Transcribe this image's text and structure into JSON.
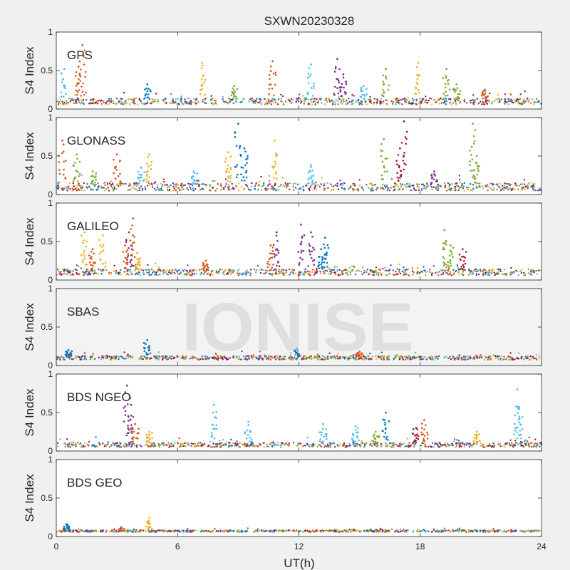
{
  "figure": {
    "title": "SXWN20230328",
    "watermark": "IONISE",
    "xlabel": "UT(h)",
    "ylabel": "S4 Index",
    "x_ticks": [
      "0",
      "6",
      "12",
      "18",
      "24"
    ],
    "y_ticks": [
      "0",
      "0.5",
      "1"
    ]
  },
  "colors": {
    "blue": "#0072bd",
    "orange": "#d95319",
    "yellow": "#edb120",
    "purple": "#7e2f8e",
    "green": "#77ac30",
    "cyan": "#4dbeee",
    "red": "#a2142f"
  },
  "chart_data": [
    {
      "type": "scatter",
      "label": "GPS",
      "xlim": [
        0,
        24
      ],
      "ylim": [
        0,
        1
      ],
      "baseline": 0.1,
      "noise": 0.04,
      "grey_band": false,
      "spikes": [
        {
          "x": 0.4,
          "y": 0.52,
          "c": "cyan"
        },
        {
          "x": 1.3,
          "y": 0.83,
          "c": "orange"
        },
        {
          "x": 1.1,
          "y": 0.55,
          "c": "orange"
        },
        {
          "x": 4.5,
          "y": 0.32,
          "c": "blue"
        },
        {
          "x": 7.2,
          "y": 0.6,
          "c": "yellow"
        },
        {
          "x": 8.8,
          "y": 0.3,
          "c": "green"
        },
        {
          "x": 10.7,
          "y": 0.62,
          "c": "orange"
        },
        {
          "x": 12.6,
          "y": 0.58,
          "c": "cyan"
        },
        {
          "x": 13.9,
          "y": 0.65,
          "c": "purple"
        },
        {
          "x": 14.2,
          "y": 0.45,
          "c": "purple"
        },
        {
          "x": 15.2,
          "y": 0.3,
          "c": "cyan"
        },
        {
          "x": 16.3,
          "y": 0.52,
          "c": "green"
        },
        {
          "x": 17.9,
          "y": 0.6,
          "c": "yellow"
        },
        {
          "x": 19.3,
          "y": 0.52,
          "c": "green"
        },
        {
          "x": 19.8,
          "y": 0.32,
          "c": "green"
        },
        {
          "x": 21.2,
          "y": 0.25,
          "c": "orange"
        }
      ]
    },
    {
      "type": "scatter",
      "label": "GLONASS",
      "xlim": [
        0,
        24
      ],
      "ylim": [
        0,
        1
      ],
      "baseline": 0.1,
      "noise": 0.05,
      "grey_band": false,
      "spikes": [
        {
          "x": 0.3,
          "y": 0.7,
          "c": "orange"
        },
        {
          "x": 1.0,
          "y": 0.52,
          "c": "green"
        },
        {
          "x": 1.8,
          "y": 0.3,
          "c": "green"
        },
        {
          "x": 3.0,
          "y": 0.52,
          "c": "orange"
        },
        {
          "x": 4.6,
          "y": 0.52,
          "c": "yellow"
        },
        {
          "x": 4.2,
          "y": 0.35,
          "c": "cyan"
        },
        {
          "x": 6.8,
          "y": 0.3,
          "c": "cyan"
        },
        {
          "x": 9.0,
          "y": 0.92,
          "c": "blue"
        },
        {
          "x": 9.3,
          "y": 0.6,
          "c": "blue"
        },
        {
          "x": 8.5,
          "y": 0.55,
          "c": "yellow"
        },
        {
          "x": 10.8,
          "y": 0.7,
          "c": "yellow"
        },
        {
          "x": 12.6,
          "y": 0.38,
          "c": "cyan"
        },
        {
          "x": 16.2,
          "y": 0.72,
          "c": "green"
        },
        {
          "x": 17.2,
          "y": 0.95,
          "c": "red"
        },
        {
          "x": 17.0,
          "y": 0.6,
          "c": "red"
        },
        {
          "x": 18.7,
          "y": 0.3,
          "c": "purple"
        },
        {
          "x": 20.6,
          "y": 0.92,
          "c": "green"
        },
        {
          "x": 20.8,
          "y": 0.5,
          "c": "green"
        }
      ]
    },
    {
      "type": "scatter",
      "label": "GALILEO",
      "xlim": [
        0,
        24
      ],
      "ylim": [
        0,
        1
      ],
      "baseline": 0.1,
      "noise": 0.04,
      "grey_band": false,
      "spikes": [
        {
          "x": 1.4,
          "y": 0.62,
          "c": "yellow"
        },
        {
          "x": 1.8,
          "y": 0.4,
          "c": "orange"
        },
        {
          "x": 2.3,
          "y": 0.58,
          "c": "yellow"
        },
        {
          "x": 3.6,
          "y": 0.62,
          "c": "purple"
        },
        {
          "x": 3.8,
          "y": 0.8,
          "c": "orange"
        },
        {
          "x": 3.4,
          "y": 0.45,
          "c": "orange"
        },
        {
          "x": 4.0,
          "y": 0.35,
          "c": "yellow"
        },
        {
          "x": 7.4,
          "y": 0.25,
          "c": "orange"
        },
        {
          "x": 10.6,
          "y": 0.45,
          "c": "orange"
        },
        {
          "x": 10.9,
          "y": 0.62,
          "c": "purple"
        },
        {
          "x": 12.1,
          "y": 0.72,
          "c": "purple"
        },
        {
          "x": 12.6,
          "y": 0.62,
          "c": "purple"
        },
        {
          "x": 13.3,
          "y": 0.55,
          "c": "blue"
        },
        {
          "x": 13.1,
          "y": 0.4,
          "c": "blue"
        },
        {
          "x": 19.2,
          "y": 0.65,
          "c": "green"
        },
        {
          "x": 19.5,
          "y": 0.45,
          "c": "green"
        },
        {
          "x": 20.1,
          "y": 0.4,
          "c": "red"
        }
      ]
    },
    {
      "type": "scatter",
      "label": "SBAS",
      "xlim": [
        0,
        24
      ],
      "ylim": [
        0,
        1
      ],
      "baseline": 0.1,
      "noise": 0.025,
      "grey_band": true,
      "spikes": [
        {
          "x": 4.5,
          "y": 0.33,
          "c": "blue"
        },
        {
          "x": 0.6,
          "y": 0.2,
          "c": "blue"
        },
        {
          "x": 11.9,
          "y": 0.22,
          "c": "blue"
        },
        {
          "x": 15.0,
          "y": 0.18,
          "c": "orange"
        }
      ]
    },
    {
      "type": "scatter",
      "label": "BDS NGEO",
      "xlim": [
        0,
        24
      ],
      "ylim": [
        0,
        1
      ],
      "baseline": 0.08,
      "noise": 0.03,
      "grey_band": false,
      "spikes": [
        {
          "x": 3.5,
          "y": 0.85,
          "c": "purple"
        },
        {
          "x": 3.7,
          "y": 0.6,
          "c": "purple"
        },
        {
          "x": 3.9,
          "y": 0.35,
          "c": "orange"
        },
        {
          "x": 4.6,
          "y": 0.25,
          "c": "yellow"
        },
        {
          "x": 7.8,
          "y": 0.6,
          "c": "cyan"
        },
        {
          "x": 9.5,
          "y": 0.38,
          "c": "cyan"
        },
        {
          "x": 13.2,
          "y": 0.35,
          "c": "cyan"
        },
        {
          "x": 14.8,
          "y": 0.32,
          "c": "cyan"
        },
        {
          "x": 15.8,
          "y": 0.25,
          "c": "green"
        },
        {
          "x": 16.3,
          "y": 0.5,
          "c": "blue"
        },
        {
          "x": 18.2,
          "y": 0.4,
          "c": "orange"
        },
        {
          "x": 17.8,
          "y": 0.3,
          "c": "red"
        },
        {
          "x": 20.8,
          "y": 0.25,
          "c": "yellow"
        },
        {
          "x": 22.8,
          "y": 0.8,
          "c": "cyan"
        },
        {
          "x": 22.9,
          "y": 0.55,
          "c": "cyan"
        }
      ]
    },
    {
      "type": "scatter",
      "label": "BDS GEO",
      "xlim": [
        0,
        24
      ],
      "ylim": [
        0,
        1
      ],
      "baseline": 0.07,
      "noise": 0.012,
      "grey_band": false,
      "spikes": [
        {
          "x": 4.6,
          "y": 0.24,
          "c": "yellow"
        },
        {
          "x": 0.5,
          "y": 0.16,
          "c": "blue"
        },
        {
          "x": 3.2,
          "y": 0.12,
          "c": "orange"
        }
      ]
    }
  ]
}
